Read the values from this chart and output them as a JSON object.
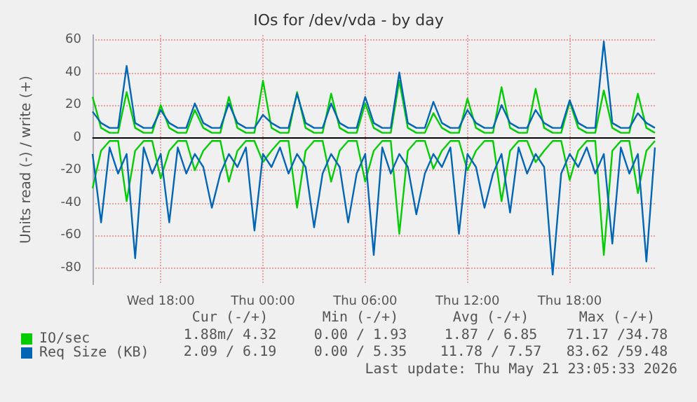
{
  "chart_data": {
    "type": "line",
    "title": "IOs for /dev/vda - by day",
    "ylabel": "Units read (-) / write (+)",
    "categories": [
      null,
      null,
      null,
      null,
      null,
      null,
      null,
      null,
      "Wed 18:00",
      null,
      null,
      null,
      null,
      null,
      null,
      null,
      null,
      null,
      null,
      null,
      "Thu 00:00",
      null,
      null,
      null,
      null,
      null,
      null,
      null,
      null,
      null,
      null,
      null,
      "Thu 06:00",
      null,
      null,
      null,
      null,
      null,
      null,
      null,
      null,
      null,
      null,
      null,
      "Thu 12:00",
      null,
      null,
      null,
      null,
      null,
      null,
      null,
      null,
      null,
      null,
      null,
      "Thu 18:00",
      null,
      null,
      null,
      null,
      null,
      null,
      null,
      null,
      null,
      null
    ],
    "series": [
      {
        "name": "IO/sec",
        "color": "#00cc00",
        "values": [
          25,
          6,
          3,
          3,
          28,
          6,
          3,
          3,
          20,
          6,
          3,
          3,
          17,
          6,
          3,
          3,
          25,
          6,
          3,
          3,
          35,
          6,
          3,
          3,
          28,
          6,
          3,
          3,
          27,
          6,
          3,
          3,
          21,
          6,
          3,
          3,
          35,
          6,
          3,
          3,
          15,
          6,
          3,
          3,
          24,
          6,
          3,
          3,
          31,
          6,
          3,
          3,
          30,
          6,
          3,
          3,
          22,
          6,
          3,
          3,
          29,
          6,
          3,
          3,
          27,
          6,
          3
        ]
      },
      {
        "color": "#00cc00",
        "values": [
          -31,
          -8,
          -2,
          -2,
          -39,
          -8,
          -2,
          -2,
          -25,
          -8,
          -2,
          -2,
          -20,
          -8,
          -2,
          -2,
          -27,
          -8,
          -2,
          -2,
          -15,
          -8,
          -2,
          -2,
          -43,
          -8,
          -2,
          -2,
          -27,
          -8,
          -2,
          -2,
          -27,
          -8,
          -2,
          -2,
          -59,
          -8,
          -2,
          -2,
          -19,
          -8,
          -2,
          -2,
          -20,
          -8,
          -2,
          -2,
          -39,
          -8,
          -2,
          -2,
          -15,
          -8,
          -2,
          -2,
          -26,
          -8,
          -2,
          -2,
          -72,
          -8,
          -2,
          -2,
          -34,
          -8,
          -2
        ]
      },
      {
        "name": "Req Size (KB)",
        "color": "#0066b3",
        "values": [
          16,
          9,
          6,
          6,
          44,
          9,
          6,
          6,
          17,
          9,
          6,
          6,
          21,
          9,
          6,
          6,
          21,
          9,
          6,
          6,
          14,
          9,
          6,
          6,
          27,
          9,
          6,
          6,
          21,
          9,
          6,
          6,
          25,
          9,
          6,
          6,
          40,
          9,
          6,
          6,
          22,
          9,
          6,
          6,
          17,
          9,
          6,
          6,
          20,
          9,
          6,
          6,
          17,
          9,
          6,
          6,
          23,
          9,
          6,
          6,
          59,
          9,
          6,
          6,
          15,
          9,
          6
        ]
      },
      {
        "color": "#0066b3",
        "values": [
          -10,
          -52,
          -6,
          -22,
          -10,
          -74,
          -6,
          -22,
          -10,
          -52,
          -6,
          -22,
          -10,
          -18,
          -43,
          -22,
          -10,
          -18,
          -6,
          -57,
          -10,
          -18,
          -6,
          -22,
          -10,
          -18,
          -55,
          -22,
          -10,
          -18,
          -52,
          -22,
          -10,
          -72,
          -6,
          -22,
          -10,
          -18,
          -47,
          -22,
          -10,
          -18,
          -6,
          -59,
          -10,
          -18,
          -43,
          -22,
          -10,
          -46,
          -6,
          -22,
          -10,
          -18,
          -84,
          -22,
          -10,
          -18,
          -6,
          -22,
          -10,
          -65,
          -6,
          -22,
          -10,
          -76,
          -6
        ]
      }
    ],
    "ylim": [
      -90,
      63
    ],
    "yticks": [
      -80,
      -60,
      -40,
      -20,
      0,
      20,
      40,
      60
    ],
    "ref_lines": [
      {
        "axis": "y",
        "value": 0,
        "color": "#000000"
      }
    ],
    "grid": true,
    "legend": "bottom left",
    "annotations": [
      "Cur (-/+)",
      "Min (-/+)",
      "Avg (-/+)",
      "Max (-/+)",
      "1.88m/ 4.32",
      "0.00 / 1.93",
      "1.87 / 6.85",
      "71.17 /34.78",
      "2.09 / 6.19",
      "0.00 / 5.35",
      "11.78 / 7.57",
      "83.62 /59.48",
      "Last update: Thu May 21 23:05:33 2026"
    ]
  }
}
